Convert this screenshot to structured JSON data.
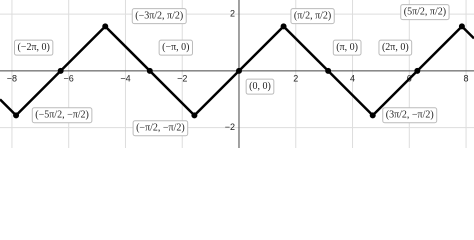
{
  "chart_data": {
    "type": "line",
    "xlim": [
      -8.42,
      8.28
    ],
    "ylim": [
      -2.72,
      2.5
    ],
    "xticks": [
      {
        "value": -8,
        "label": "−8"
      },
      {
        "value": -6,
        "label": "−6"
      },
      {
        "value": -4,
        "label": "−4"
      },
      {
        "value": -2,
        "label": "−2"
      },
      2,
      4,
      6,
      8
    ],
    "yticks": [
      {
        "value": -2,
        "label": "−2"
      },
      2
    ],
    "grid": true,
    "series": [
      {
        "color": "#000000",
        "x": [
          -8.42,
          -7.854,
          -4.712,
          -1.571,
          1.571,
          4.712,
          7.854,
          8.28
        ],
        "values": [
          -1.004,
          -1.571,
          1.571,
          -1.571,
          1.571,
          -1.571,
          1.571,
          1.145
        ]
      }
    ],
    "points": [
      {
        "x": -6.283,
        "y": 0,
        "label": "(−2π, 0)"
      },
      {
        "x": -4.712,
        "y": 1.571,
        "label": "(−3π/2, π/2)"
      },
      {
        "x": -3.142,
        "y": 0,
        "label": "(−π, 0)"
      },
      {
        "x": 0,
        "y": 0,
        "label": "(0, 0)"
      },
      {
        "x": 1.571,
        "y": 1.571,
        "label": "(π/2, π/2)"
      },
      {
        "x": 3.142,
        "y": 0,
        "label": "(π, 0)"
      },
      {
        "x": 6.283,
        "y": 0,
        "label": "(2π, 0)"
      },
      {
        "x": 7.854,
        "y": 1.571,
        "label": "(5π/2, π/2)"
      },
      {
        "x": -7.854,
        "y": -1.571,
        "label": "(−5π/2, −π/2)"
      },
      {
        "x": -1.571,
        "y": -1.571,
        "label": "(−π/2, −π/2)"
      },
      {
        "x": 4.712,
        "y": -1.571,
        "label": "(3π/2, −π/2)"
      }
    ]
  }
}
